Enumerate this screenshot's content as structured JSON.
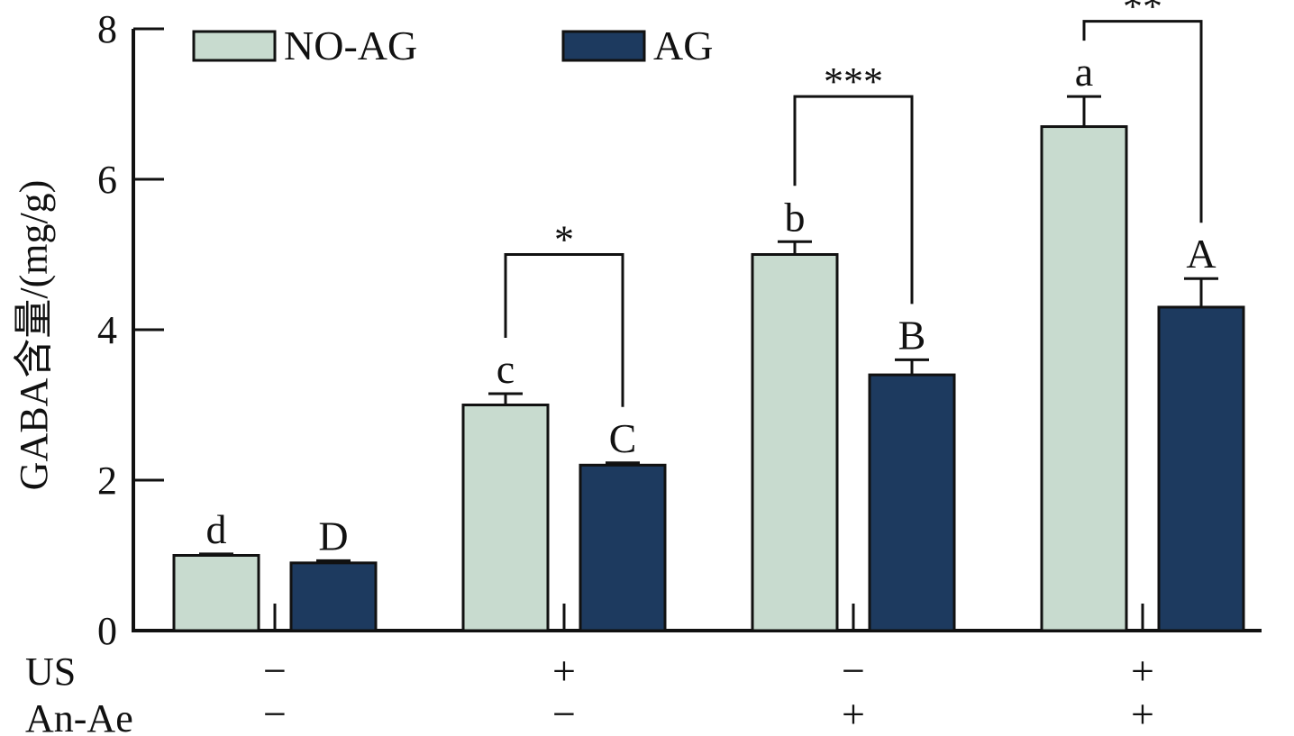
{
  "chart_data": {
    "type": "bar",
    "ylabel": "GABA含量/(mg/g)",
    "ylim": [
      0,
      8
    ],
    "yticks": [
      0,
      2,
      4,
      6,
      8
    ],
    "categories": [
      {
        "US": "−",
        "AnAe": "−"
      },
      {
        "US": "+",
        "AnAe": "−"
      },
      {
        "US": "−",
        "AnAe": "+"
      },
      {
        "US": "+",
        "AnAe": "+"
      }
    ],
    "row_labels": {
      "US": "US",
      "AnAe": "An-Ae"
    },
    "series": [
      {
        "name": "NO-AG",
        "color": "#c8dbcf",
        "values": [
          1.0,
          3.0,
          5.0,
          6.7
        ],
        "errors": [
          0.02,
          0.15,
          0.17,
          0.4
        ],
        "letters": [
          "d",
          "c",
          "b",
          "a"
        ]
      },
      {
        "name": "AG",
        "color": "#1d3a5f",
        "values": [
          0.9,
          2.2,
          3.4,
          4.3
        ],
        "errors": [
          0.03,
          0.03,
          0.2,
          0.38
        ],
        "letters": [
          "D",
          "C",
          "B",
          "A"
        ]
      }
    ],
    "significance": [
      {
        "group": 1,
        "label": "*",
        "y": 5.0
      },
      {
        "group": 2,
        "label": "***",
        "y": 7.1
      },
      {
        "group": 3,
        "label": "**",
        "y": 8.1
      }
    ],
    "legend": {
      "position": "top-left",
      "entries": [
        "NO-AG",
        "AG"
      ]
    },
    "grid": false
  }
}
